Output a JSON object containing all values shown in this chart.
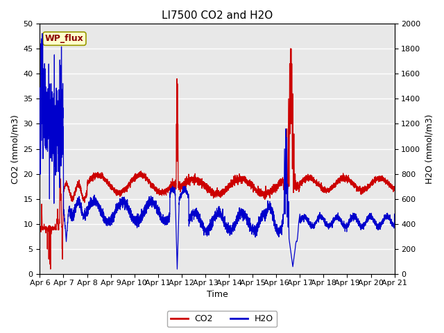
{
  "title": "LI7500 CO2 and H2O",
  "xlabel": "Time",
  "ylabel_left": "CO2 (mmol/m3)",
  "ylabel_right": "H2O (mmol/m3)",
  "ylim_left": [
    0,
    50
  ],
  "ylim_right": [
    0,
    2000
  ],
  "yticks_left": [
    0,
    5,
    10,
    15,
    20,
    25,
    30,
    35,
    40,
    45,
    50
  ],
  "yticks_right": [
    0,
    200,
    400,
    600,
    800,
    1000,
    1200,
    1400,
    1600,
    1800,
    2000
  ],
  "xtick_labels": [
    "Apr 6",
    "Apr 7",
    "Apr 8",
    "Apr 9",
    "Apr 10",
    "Apr 11",
    "Apr 12",
    "Apr 13",
    "Apr 14",
    "Apr 15",
    "Apr 16",
    "Apr 17",
    "Apr 18",
    "Apr 19",
    "Apr 20",
    "Apr 21"
  ],
  "annotation_text": "WP_flux",
  "co2_color": "#cc0000",
  "h2o_color": "#0000cc",
  "plot_bg_color": "#e8e8e8",
  "fig_bg_color": "#ffffff",
  "grid_color": "#ffffff",
  "legend_co2": "CO2",
  "legend_h2o": "H2O",
  "title_fontsize": 11,
  "axis_label_fontsize": 9,
  "tick_label_fontsize": 8,
  "linewidth": 0.9
}
